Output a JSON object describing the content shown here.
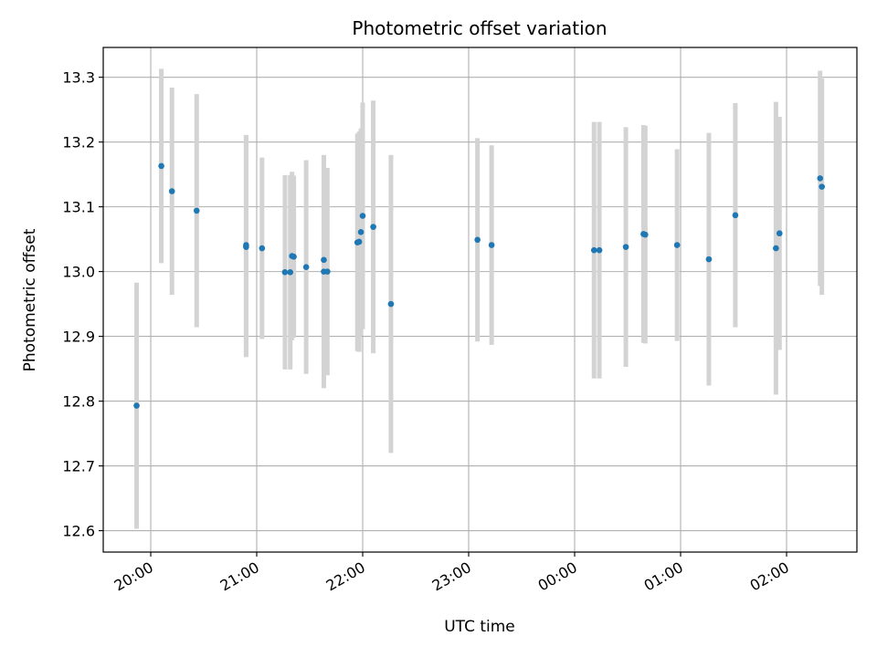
{
  "chart_data": {
    "type": "scatter",
    "title": "Photometric offset variation",
    "xlabel": "UTC time",
    "ylabel": "Photometric offset",
    "x_ticks": [
      "20:00",
      "21:00",
      "22:00",
      "23:00",
      "00:00",
      "01:00",
      "02:00"
    ],
    "y_ticks": [
      "12.6",
      "12.7",
      "12.8",
      "12.9",
      "13.0",
      "13.1",
      "13.2",
      "13.3"
    ],
    "ylim": [
      12.567,
      13.346
    ],
    "grid": true,
    "colors": {
      "point": "#1f77b4",
      "errorbar": "#d3d3d3",
      "grid": "#b0b0b0"
    },
    "points": [
      {
        "x": "19:52",
        "y": 12.793,
        "err": 0.19
      },
      {
        "x": "20:06",
        "y": 13.163,
        "err": 0.15
      },
      {
        "x": "20:12",
        "y": 13.124,
        "err": 0.16
      },
      {
        "x": "20:26",
        "y": 13.094,
        "err": 0.18
      },
      {
        "x": "20:54",
        "y": 13.041,
        "err": 0.17
      },
      {
        "x": "20:54",
        "y": 13.038,
        "err": 0.17
      },
      {
        "x": "21:03",
        "y": 13.036,
        "err": 0.14
      },
      {
        "x": "21:16",
        "y": 12.999,
        "err": 0.15
      },
      {
        "x": "21:19",
        "y": 12.999,
        "err": 0.15
      },
      {
        "x": "21:20",
        "y": 13.024,
        "err": 0.13
      },
      {
        "x": "21:21",
        "y": 13.023,
        "err": 0.125
      },
      {
        "x": "21:28",
        "y": 13.007,
        "err": 0.165
      },
      {
        "x": "21:38",
        "y": 13.018,
        "err": 0.16
      },
      {
        "x": "21:38",
        "y": 13.0,
        "err": 0.18
      },
      {
        "x": "21:40",
        "y": 13.0,
        "err": 0.16
      },
      {
        "x": "21:57",
        "y": 13.045,
        "err": 0.168
      },
      {
        "x": "21:58",
        "y": 13.046,
        "err": 0.17
      },
      {
        "x": "21:59",
        "y": 13.061,
        "err": 0.16
      },
      {
        "x": "22:00",
        "y": 13.086,
        "err": 0.175
      },
      {
        "x": "22:06",
        "y": 13.069,
        "err": 0.195
      },
      {
        "x": "22:16",
        "y": 12.95,
        "err": 0.23
      },
      {
        "x": "23:05",
        "y": 13.049,
        "err": 0.157
      },
      {
        "x": "23:13",
        "y": 13.041,
        "err": 0.154
      },
      {
        "x": "00:11",
        "y": 13.033,
        "err": 0.198
      },
      {
        "x": "00:14",
        "y": 13.033,
        "err": 0.198
      },
      {
        "x": "00:29",
        "y": 13.038,
        "err": 0.185
      },
      {
        "x": "00:39",
        "y": 13.058,
        "err": 0.168
      },
      {
        "x": "00:40",
        "y": 13.057,
        "err": 0.168
      },
      {
        "x": "00:58",
        "y": 13.041,
        "err": 0.148
      },
      {
        "x": "01:16",
        "y": 13.019,
        "err": 0.195
      },
      {
        "x": "01:31",
        "y": 13.087,
        "err": 0.173
      },
      {
        "x": "01:54",
        "y": 13.036,
        "err": 0.226
      },
      {
        "x": "01:56",
        "y": 13.059,
        "err": 0.18
      },
      {
        "x": "02:19",
        "y": 13.144,
        "err": 0.166
      },
      {
        "x": "02:20",
        "y": 13.131,
        "err": 0.167
      }
    ]
  }
}
